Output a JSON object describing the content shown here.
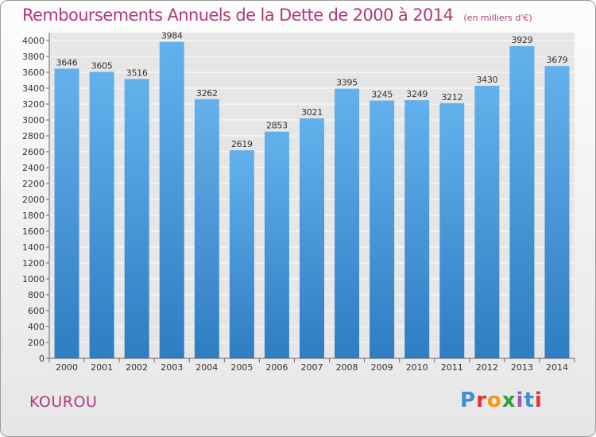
{
  "header": {
    "title": "Remboursements Annuels de la Dette de 2000 à 2014",
    "subtitle": "(en milliers d'€)"
  },
  "footer": {
    "commune": "KOUROU",
    "logo_text": "Proxiti",
    "logo_colors": [
      "#3a8fd8",
      "#e5322d",
      "#f39c12",
      "#2e9e3e",
      "#9b59b6",
      "#3a8fd8",
      "#e5322d"
    ]
  },
  "chart_data": {
    "type": "bar",
    "categories": [
      "2000",
      "2001",
      "2002",
      "2003",
      "2004",
      "2005",
      "2006",
      "2007",
      "2008",
      "2009",
      "2010",
      "2011",
      "2012",
      "2013",
      "2014"
    ],
    "values": [
      3646,
      3605,
      3516,
      3984,
      3262,
      2619,
      2853,
      3021,
      3395,
      3245,
      3249,
      3212,
      3430,
      3929,
      3679
    ],
    "ylim": [
      0,
      4000
    ],
    "y_ticks": [
      0,
      200,
      400,
      600,
      800,
      1000,
      1200,
      1400,
      1600,
      1800,
      2000,
      2200,
      2400,
      2600,
      2800,
      3000,
      3200,
      3400,
      3600,
      3800,
      4000
    ],
    "grid": true,
    "data_labels": true,
    "bar_color_top": "#63b1ec",
    "bar_color_bottom": "#2f7dc2",
    "xlabel": "",
    "ylabel": ""
  }
}
